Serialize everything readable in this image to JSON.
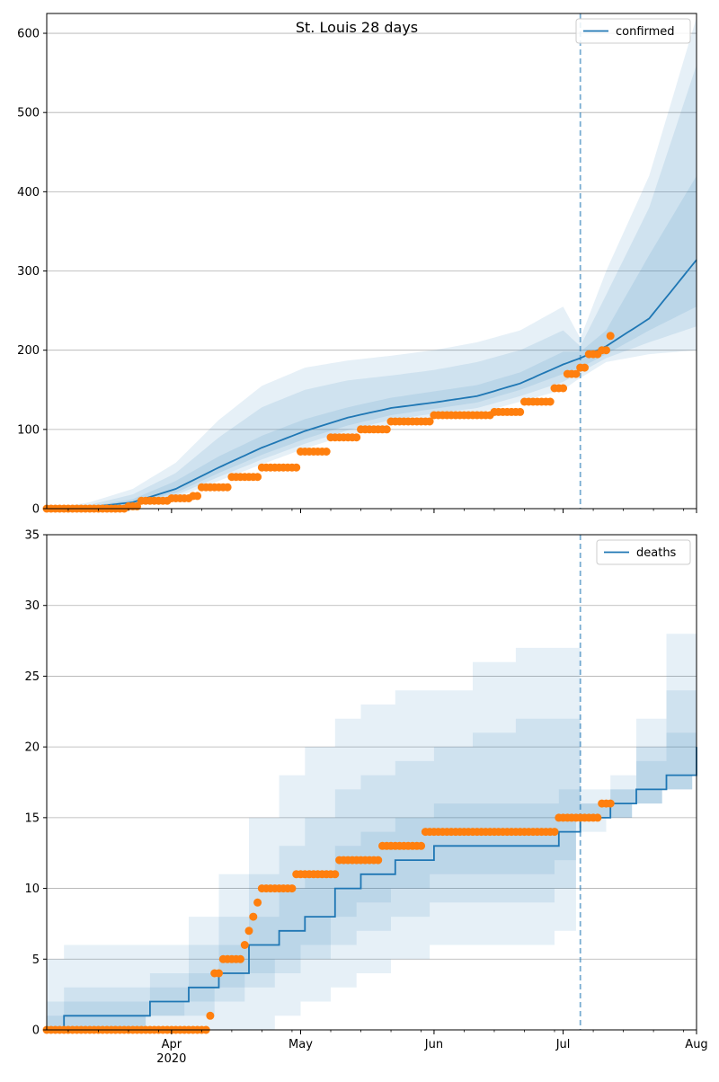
{
  "figure": {
    "title": "St. Louis 28 days"
  },
  "chart_data": [
    {
      "type": "line",
      "ylim": [
        0,
        625
      ],
      "xlim": [
        "2020-03-03",
        "2020-08-01"
      ],
      "yticks": [
        0,
        100,
        200,
        300,
        400,
        500,
        600
      ],
      "grid": "horizontal",
      "legend_placement": "top-right",
      "forecast_start": "2020-07-05",
      "colors": {
        "model": "#1f77b4",
        "observed": "#ff7f0e"
      },
      "model": {
        "name": "confirmed",
        "x": [
          "2020-03-03",
          "2020-03-13",
          "2020-03-23",
          "2020-04-02",
          "2020-04-12",
          "2020-04-22",
          "2020-05-02",
          "2020-05-12",
          "2020-05-22",
          "2020-06-01",
          "2020-06-11",
          "2020-06-21",
          "2020-07-01",
          "2020-07-05",
          "2020-07-11",
          "2020-07-21",
          "2020-08-01"
        ],
        "median": [
          0,
          2,
          8,
          25,
          52,
          77,
          98,
          115,
          127,
          134,
          142,
          158,
          182,
          190,
          205,
          240,
          314
        ],
        "bands": [
          {
            "lower": [
              0,
              0,
              4,
              14,
              35,
              56,
              76,
              93,
              106,
              114,
              120,
              135,
              150,
              165,
              185,
              195,
              200
            ],
            "upper": [
              0,
              8,
              25,
              58,
              112,
              155,
              178,
              187,
              193,
              200,
              210,
              225,
              255,
              215,
              300,
              420,
              620
            ]
          },
          {
            "lower": [
              0,
              1,
              5,
              17,
              40,
              62,
              82,
              99,
              112,
              120,
              127,
              142,
              160,
              172,
              190,
              210,
              230
            ],
            "upper": [
              0,
              5,
              18,
              45,
              90,
              128,
              150,
              162,
              168,
              175,
              185,
              200,
              225,
              205,
              270,
              380,
              560
            ]
          },
          {
            "lower": [
              0,
              1,
              6,
              20,
              45,
              68,
              88,
              105,
              118,
              126,
              134,
              150,
              170,
              178,
              195,
              225,
              255
            ],
            "upper": [
              0,
              3,
              12,
              35,
              66,
              92,
              113,
              128,
              140,
              148,
              156,
              172,
              198,
              198,
              225,
              320,
              420
            ]
          }
        ]
      },
      "observed": {
        "x": [
          "2020-03-03",
          "2020-03-22",
          "2020-03-25",
          "2020-04-01",
          "2020-04-06",
          "2020-04-08",
          "2020-04-15",
          "2020-04-22",
          "2020-05-01",
          "2020-05-08",
          "2020-05-15",
          "2020-05-22",
          "2020-06-01",
          "2020-06-08",
          "2020-06-15",
          "2020-06-22",
          "2020-06-29",
          "2020-07-02",
          "2020-07-05",
          "2020-07-07",
          "2020-07-10",
          "2020-07-12"
        ],
        "y": [
          0,
          3,
          10,
          13,
          16,
          27,
          40,
          52,
          72,
          90,
          100,
          110,
          118,
          118,
          122,
          135,
          152,
          170,
          178,
          195,
          200,
          218
        ]
      }
    },
    {
      "type": "line",
      "ylim": [
        0,
        35
      ],
      "xlim": [
        "2020-03-03",
        "2020-08-01"
      ],
      "yticks": [
        0,
        5,
        10,
        15,
        20,
        25,
        30,
        35
      ],
      "xticks": [
        "Apr\n2020",
        "May",
        "Jun",
        "Jul",
        "Aug"
      ],
      "grid": "horizontal",
      "legend_placement": "top-right",
      "forecast_start": "2020-07-05",
      "colors": {
        "model": "#1f77b4",
        "observed": "#ff7f0e"
      },
      "model": {
        "name": "deaths",
        "x": [
          "2020-03-03",
          "2020-03-07",
          "2020-03-27",
          "2020-04-05",
          "2020-04-12",
          "2020-04-19",
          "2020-04-26",
          "2020-05-02",
          "2020-05-09",
          "2020-05-15",
          "2020-05-23",
          "2020-06-01",
          "2020-06-10",
          "2020-06-20",
          "2020-06-30",
          "2020-07-05",
          "2020-07-12",
          "2020-07-18",
          "2020-07-25",
          "2020-08-01"
        ],
        "median": [
          0,
          1,
          2,
          3,
          4,
          6,
          7,
          8,
          10,
          11,
          12,
          13,
          13,
          13,
          14,
          15,
          16,
          17,
          18,
          20
        ],
        "bands": [
          {
            "lower": [
              0,
              0,
              0,
              0,
              0,
              0,
              1,
              2,
              3,
              4,
              5,
              6,
              6,
              6,
              7,
              14,
              15,
              16,
              17,
              18
            ],
            "upper": [
              5,
              6,
              6,
              8,
              11,
              15,
              18,
              20,
              22,
              23,
              24,
              24,
              26,
              27,
              27,
              17,
              18,
              22,
              28,
              34
            ]
          },
          {
            "lower": [
              0,
              0,
              1,
              1,
              2,
              3,
              4,
              5,
              6,
              7,
              8,
              9,
              9,
              9,
              10,
              15,
              15,
              16,
              17,
              18
            ],
            "upper": [
              2,
              3,
              4,
              6,
              8,
              11,
              13,
              15,
              17,
              18,
              19,
              20,
              21,
              22,
              22,
              16,
              17,
              20,
              24,
              30
            ]
          },
          {
            "lower": [
              0,
              0,
              1,
              2,
              3,
              4,
              5,
              6,
              8,
              9,
              10,
              11,
              11,
              11,
              12,
              15,
              15,
              16,
              17,
              18
            ],
            "upper": [
              1,
              2,
              3,
              4,
              6,
              8,
              10,
              11,
              13,
              14,
              15,
              16,
              16,
              16,
              17,
              16,
              17,
              19,
              21,
              24
            ]
          }
        ]
      },
      "observed": {
        "x": [
          "2020-03-03",
          "2020-04-10",
          "2020-04-11",
          "2020-04-13",
          "2020-04-15",
          "2020-04-18",
          "2020-04-19",
          "2020-04-20",
          "2020-04-21",
          "2020-04-22",
          "2020-04-30",
          "2020-05-10",
          "2020-05-20",
          "2020-05-30",
          "2020-06-30",
          "2020-07-10",
          "2020-07-12"
        ],
        "y": [
          0,
          1,
          4,
          5,
          5,
          6,
          7,
          8,
          9,
          10,
          11,
          12,
          13,
          14,
          15,
          16,
          16
        ]
      }
    }
  ]
}
